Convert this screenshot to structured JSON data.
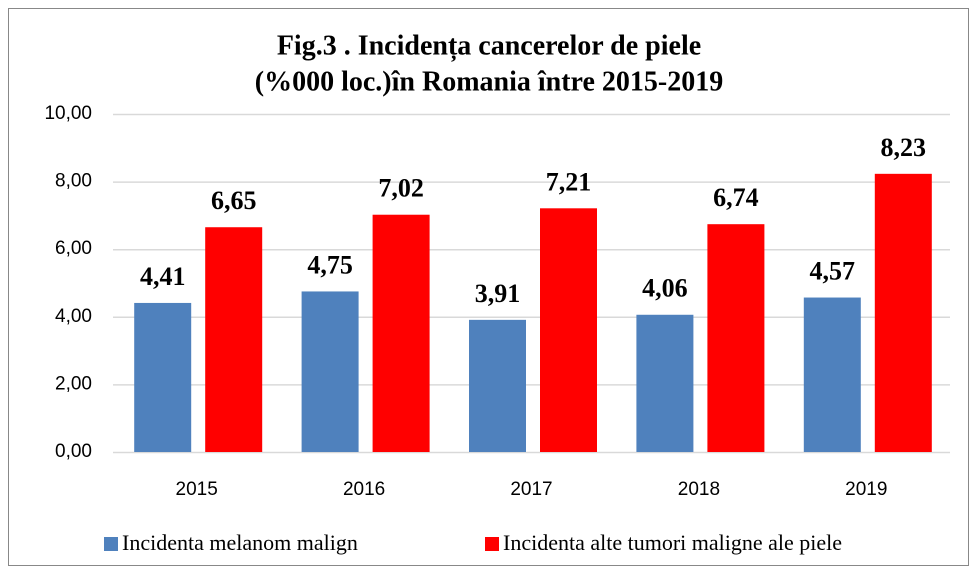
{
  "chart_data": {
    "type": "bar",
    "title": [
      "Fig.3 . Incidența cancerelor de piele",
      "(%000 loc.)în Romania între 2015-2019"
    ],
    "categories": [
      "2015",
      "2016",
      "2017",
      "2018",
      "2019"
    ],
    "series": [
      {
        "name": "Incidenta melanom malign",
        "color": "#4f81bd",
        "values": [
          4.41,
          4.75,
          3.91,
          4.06,
          4.57
        ],
        "value_labels": [
          "4,41",
          "4,75",
          "3,91",
          "4,06",
          "4,57"
        ]
      },
      {
        "name": "Incidenta alte tumori maligne ale piele",
        "color": "#ff0000",
        "values": [
          6.65,
          7.02,
          7.21,
          6.74,
          8.23
        ],
        "value_labels": [
          "6,65",
          "7,02",
          "7,21",
          "6,74",
          "8,23"
        ]
      }
    ],
    "ylim": [
      0,
      10
    ],
    "yticks": [
      {
        "value": 0,
        "label": "0,00"
      },
      {
        "value": 2,
        "label": "2,00"
      },
      {
        "value": 4,
        "label": "4,00"
      },
      {
        "value": 6,
        "label": "6,00"
      },
      {
        "value": 8,
        "label": "8,00"
      },
      {
        "value": 10,
        "label": "10,00"
      }
    ],
    "grid": true,
    "legend": "bottom"
  }
}
